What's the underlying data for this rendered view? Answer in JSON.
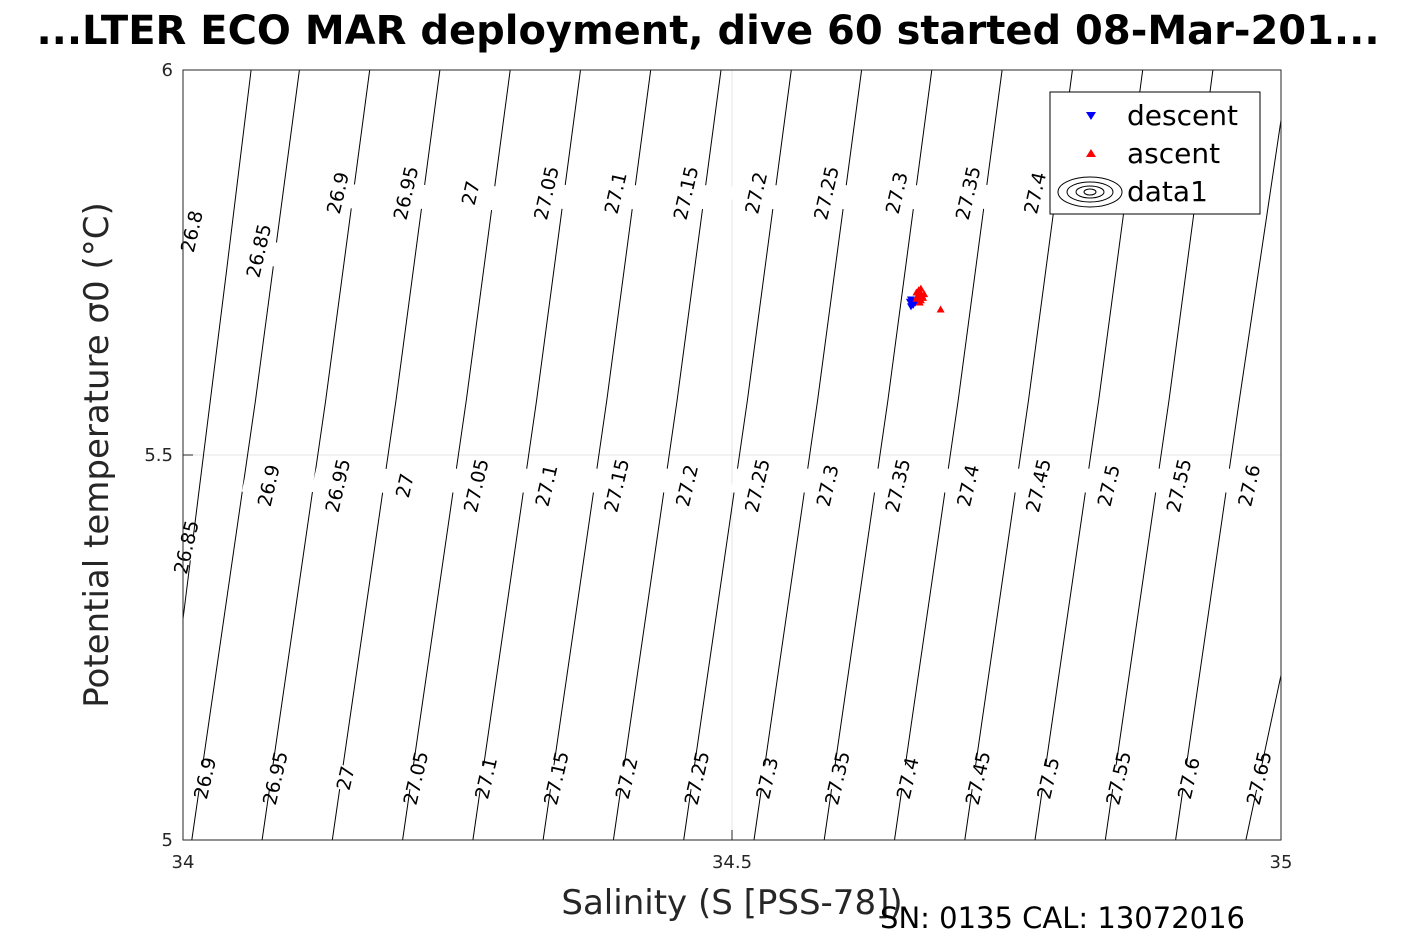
{
  "chart_data": {
    "type": "scatter",
    "title": "...LTER ECO MAR deployment, dive 60 started 08-Mar-201...",
    "xlabel": "Salinity (S [PSS-78])",
    "ylabel": "Potential temperature σ0 (°C)",
    "xlim": [
      34,
      35
    ],
    "ylim": [
      5,
      6
    ],
    "x_ticks": [
      "34",
      "34.5",
      "35"
    ],
    "y_ticks": [
      "5",
      "5.5",
      "6"
    ],
    "grid": true,
    "legend_position": "top-right",
    "legend": [
      "descent",
      "ascent",
      "data1"
    ],
    "series": [
      {
        "name": "descent",
        "marker": "triangle-down",
        "color": "#0000ff",
        "points": [
          [
            34.663,
            5.693
          ],
          [
            34.664,
            5.697
          ],
          [
            34.662,
            5.699
          ],
          [
            34.665,
            5.695
          ],
          [
            34.666,
            5.7
          ],
          [
            34.663,
            5.702
          ],
          [
            34.667,
            5.698
          ]
        ]
      },
      {
        "name": "ascent",
        "marker": "triangle-up",
        "color": "#ff0000",
        "points": [
          [
            34.668,
            5.703
          ],
          [
            34.67,
            5.709
          ],
          [
            34.671,
            5.712
          ],
          [
            34.669,
            5.706
          ],
          [
            34.672,
            5.701
          ],
          [
            34.673,
            5.707
          ],
          [
            34.67,
            5.714
          ],
          [
            34.674,
            5.704
          ],
          [
            34.668,
            5.711
          ],
          [
            34.671,
            5.698
          ],
          [
            34.675,
            5.709
          ],
          [
            34.672,
            5.716
          ],
          [
            34.69,
            5.689
          ]
        ]
      },
      {
        "name": "data1",
        "type": "contour",
        "color": "#000000",
        "line_width": 1,
        "description": "sigma-theta density isolines",
        "levels": [
          "26.8",
          "26.85",
          "26.9",
          "26.95",
          "27",
          "27.05",
          "27.1",
          "27.15",
          "27.2",
          "27.25",
          "27.3",
          "27.35",
          "27.4",
          "27.45",
          "27.5",
          "27.55",
          "27.6",
          "27.65"
        ],
        "lines": [
          {
            "level": "26.85",
            "points": [
              [
                34.0,
                5.287
              ],
              [
                34.04,
                5.743
              ],
              [
                34.062,
                6.0
              ]
            ]
          },
          {
            "level": "26.9",
            "points": [
              [
                34.008,
                5.0
              ],
              [
                34.066,
                5.571
              ],
              [
                34.106,
                6.0
              ]
            ]
          },
          {
            "level": "26.95",
            "points": [
              [
                34.072,
                5.0
              ],
              [
                34.13,
                5.571
              ],
              [
                34.17,
                6.0
              ]
            ]
          },
          {
            "level": "27",
            "points": [
              [
                34.136,
                5.0
              ],
              [
                34.194,
                5.571
              ],
              [
                34.234,
                6.0
              ]
            ]
          },
          {
            "level": "27.05",
            "points": [
              [
                34.2,
                5.0
              ],
              [
                34.258,
                5.571
              ],
              [
                34.298,
                6.0
              ]
            ]
          },
          {
            "level": "27.1",
            "points": [
              [
                34.264,
                5.0
              ],
              [
                34.322,
                5.571
              ],
              [
                34.362,
                6.0
              ]
            ]
          },
          {
            "level": "27.15",
            "points": [
              [
                34.328,
                5.0
              ],
              [
                34.386,
                5.571
              ],
              [
                34.426,
                6.0
              ]
            ]
          },
          {
            "level": "27.2",
            "points": [
              [
                34.392,
                5.0
              ],
              [
                34.45,
                5.571
              ],
              [
                34.49,
                6.0
              ]
            ]
          },
          {
            "level": "27.25",
            "points": [
              [
                34.456,
                5.0
              ],
              [
                34.514,
                5.571
              ],
              [
                34.554,
                6.0
              ]
            ]
          },
          {
            "level": "27.3",
            "points": [
              [
                34.52,
                5.0
              ],
              [
                34.578,
                5.571
              ],
              [
                34.618,
                6.0
              ]
            ]
          },
          {
            "level": "27.35",
            "points": [
              [
                34.584,
                5.0
              ],
              [
                34.642,
                5.571
              ],
              [
                34.682,
                6.0
              ]
            ]
          },
          {
            "level": "27.4",
            "points": [
              [
                34.648,
                5.0
              ],
              [
                34.706,
                5.571
              ],
              [
                34.746,
                6.0
              ]
            ]
          },
          {
            "level": "27.45",
            "points": [
              [
                34.712,
                5.0
              ],
              [
                34.77,
                5.571
              ],
              [
                34.81,
                6.0
              ]
            ]
          },
          {
            "level": "27.5",
            "points": [
              [
                34.776,
                5.0
              ],
              [
                34.834,
                5.571
              ],
              [
                34.874,
                6.0
              ]
            ]
          },
          {
            "level": "27.55",
            "points": [
              [
                34.84,
                5.0
              ],
              [
                34.898,
                5.571
              ],
              [
                34.938,
                6.0
              ]
            ]
          },
          {
            "level": "27.6",
            "points": [
              [
                34.904,
                5.0
              ],
              [
                34.962,
                5.571
              ],
              [
                35.0,
                5.935
              ]
            ]
          },
          {
            "level": "27.65",
            "points": [
              [
                34.968,
                5.0
              ],
              [
                35.0,
                5.214
              ]
            ]
          }
        ],
        "labels": [
          {
            "text": "26.8",
            "x": 34.009,
            "y": 5.79
          },
          {
            "text": "26.85",
            "x": 34.07,
            "y": 5.765
          },
          {
            "text": "26.9",
            "x": 34.142,
            "y": 5.84
          },
          {
            "text": "26.95",
            "x": 34.204,
            "y": 5.84
          },
          {
            "text": "27",
            "x": 34.263,
            "y": 5.84
          },
          {
            "text": "27.05",
            "x": 34.332,
            "y": 5.84
          },
          {
            "text": "27.1",
            "x": 34.395,
            "y": 5.84
          },
          {
            "text": "27.15",
            "x": 34.459,
            "y": 5.84
          },
          {
            "text": "27.2",
            "x": 34.523,
            "y": 5.84
          },
          {
            "text": "27.25",
            "x": 34.587,
            "y": 5.84
          },
          {
            "text": "27.3",
            "x": 34.651,
            "y": 5.84
          },
          {
            "text": "27.35",
            "x": 34.716,
            "y": 5.84
          },
          {
            "text": "27.4",
            "x": 34.777,
            "y": 5.84
          },
          {
            "text": "26.85",
            "x": 34.004,
            "y": 5.38
          },
          {
            "text": "26.9",
            "x": 34.079,
            "y": 5.46
          },
          {
            "text": "26.95",
            "x": 34.142,
            "y": 5.46
          },
          {
            "text": "27",
            "x": 34.203,
            "y": 5.46
          },
          {
            "text": "27.05",
            "x": 34.268,
            "y": 5.46
          },
          {
            "text": "27.1",
            "x": 34.332,
            "y": 5.46
          },
          {
            "text": "27.15",
            "x": 34.396,
            "y": 5.46
          },
          {
            "text": "27.2",
            "x": 34.46,
            "y": 5.46
          },
          {
            "text": "27.25",
            "x": 34.524,
            "y": 5.46
          },
          {
            "text": "27.3",
            "x": 34.588,
            "y": 5.46
          },
          {
            "text": "27.35",
            "x": 34.652,
            "y": 5.46
          },
          {
            "text": "27.4",
            "x": 34.716,
            "y": 5.46
          },
          {
            "text": "27.45",
            "x": 34.78,
            "y": 5.46
          },
          {
            "text": "27.5",
            "x": 34.844,
            "y": 5.46
          },
          {
            "text": "27.55",
            "x": 34.908,
            "y": 5.46
          },
          {
            "text": "27.6",
            "x": 34.972,
            "y": 5.46
          },
          {
            "text": "26.9",
            "x": 34.021,
            "y": 5.08
          },
          {
            "text": "26.95",
            "x": 34.085,
            "y": 5.08
          },
          {
            "text": "27",
            "x": 34.149,
            "y": 5.08
          },
          {
            "text": "27.05",
            "x": 34.213,
            "y": 5.08
          },
          {
            "text": "27.1",
            "x": 34.277,
            "y": 5.08
          },
          {
            "text": "27.15",
            "x": 34.341,
            "y": 5.08
          },
          {
            "text": "27.2",
            "x": 34.405,
            "y": 5.08
          },
          {
            "text": "27.25",
            "x": 34.469,
            "y": 5.08
          },
          {
            "text": "27.3",
            "x": 34.533,
            "y": 5.08
          },
          {
            "text": "27.35",
            "x": 34.597,
            "y": 5.08
          },
          {
            "text": "27.4",
            "x": 34.661,
            "y": 5.08
          },
          {
            "text": "27.45",
            "x": 34.725,
            "y": 5.08
          },
          {
            "text": "27.5",
            "x": 34.789,
            "y": 5.08
          },
          {
            "text": "27.55",
            "x": 34.853,
            "y": 5.08
          },
          {
            "text": "27.6",
            "x": 34.917,
            "y": 5.08
          },
          {
            "text": "27.65",
            "x": 34.981,
            "y": 5.08
          }
        ]
      }
    ]
  },
  "footer": {
    "text": "SN: 0135  CAL: 13072016"
  }
}
